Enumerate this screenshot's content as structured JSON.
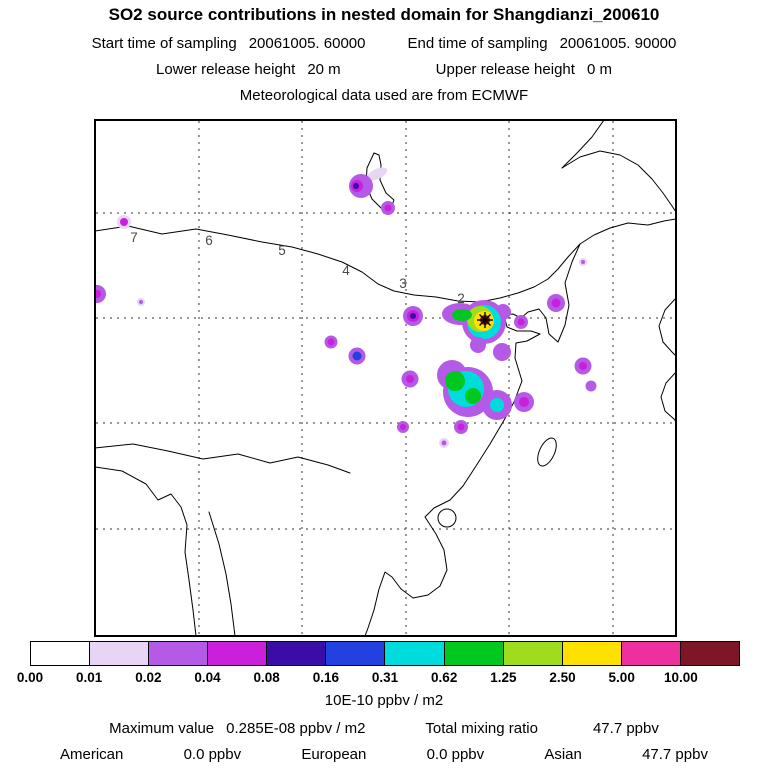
{
  "title": "SO2 source contributions in nested domain for Shangdianzi_200610",
  "header": {
    "start_label": "Start time of sampling",
    "start_value": "20061005. 60000",
    "end_label": "End time of sampling",
    "end_value": "20061005. 90000",
    "lower_label": "Lower release height",
    "lower_value": "20 m",
    "upper_label": "Upper release height",
    "upper_value": "0 m",
    "met_line": "Meteorological data used are from ECMWF"
  },
  "map": {
    "trajectory_labels": [
      "7",
      "6",
      "5",
      "4",
      "3",
      "2"
    ]
  },
  "colorbar": {
    "ticks": [
      "0.00",
      "0.01",
      "0.02",
      "0.04",
      "0.08",
      "0.16",
      "0.31",
      "0.62",
      "1.25",
      "2.50",
      "5.00",
      "10.00"
    ],
    "colors": [
      "#ffffff",
      "#e8d4f4",
      "#b45ae6",
      "#cb1fdc",
      "#3a0da8",
      "#2341e0",
      "#00dcdc",
      "#00c81e",
      "#a0dc1e",
      "#ffe100",
      "#ee2f9e",
      "#7d1728"
    ],
    "units_label": "10E-10 ppbv / m2"
  },
  "footer": {
    "max_label": "Maximum value",
    "max_value": "0.285E-08 ppbv / m2",
    "total_label": "Total mixing ratio",
    "total_value": "47.7 ppbv",
    "regions": [
      {
        "name": "American",
        "value": "0.0 ppbv"
      },
      {
        "name": "European",
        "value": "0.0 ppbv"
      },
      {
        "name": "Asian",
        "value": "47.7 ppbv"
      }
    ]
  },
  "chart_data": {
    "type": "heatmap",
    "title": "SO2 source contributions in nested domain for Shangdianzi_200610",
    "subtitle_lines": [
      "Start time of sampling 20061005. 60000",
      "End time of sampling 20061005. 90000",
      "Lower release height 20 m",
      "Upper release height 0 m",
      "Meteorological data used are from ECMWF"
    ],
    "colorbar": {
      "levels": [
        0.0,
        0.01,
        0.02,
        0.04,
        0.08,
        0.16,
        0.31,
        0.62,
        1.25,
        2.5,
        5.0,
        10.0
      ],
      "units": "10E-10 ppbv / m2",
      "colors": [
        "#ffffff",
        "#e8d4f4",
        "#b45ae6",
        "#cb1fdc",
        "#3a0da8",
        "#2341e0",
        "#00dcdc",
        "#00c81e",
        "#a0dc1e",
        "#ffe100",
        "#ee2f9e",
        "#7d1728"
      ]
    },
    "maximum_value": "0.285E-08 ppbv / m2",
    "total_mixing_ratio": "47.7 ppbv",
    "source_contributions": [
      {
        "region": "American",
        "value_ppbv": 0.0
      },
      {
        "region": "European",
        "value_ppbv": 0.0
      },
      {
        "region": "Asian",
        "value_ppbv": 47.7
      }
    ],
    "trajectory_hour_labels": [
      7,
      6,
      5,
      4,
      3,
      2
    ],
    "legend_position": "bottom",
    "grid": "dashed"
  }
}
